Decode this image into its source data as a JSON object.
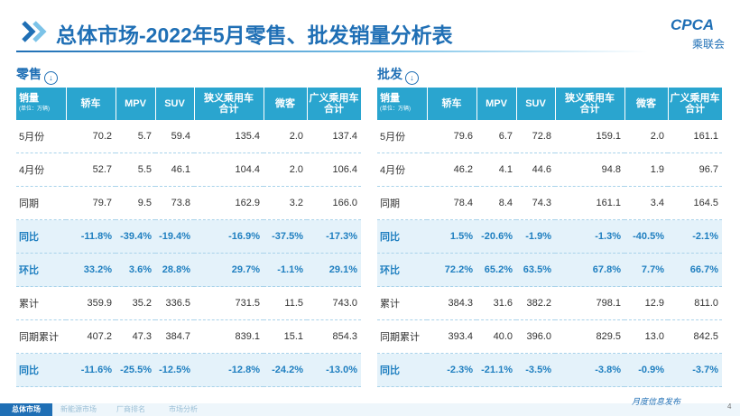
{
  "header": {
    "title": "总体市场-2022年5月零售、批发销量分析表",
    "logo": "CPCA",
    "logo_sub": "乘联会"
  },
  "tables": [
    {
      "label": "零售",
      "columns": [
        [
          "销量",
          "(单位：万辆)"
        ],
        [
          "轿车"
        ],
        [
          "MPV"
        ],
        [
          "SUV"
        ],
        [
          "狭义乘用车",
          "合计"
        ],
        [
          "微客"
        ],
        [
          "广义乘用车",
          "合计"
        ]
      ],
      "rows": [
        [
          "5月份",
          "70.2",
          "5.7",
          "59.4",
          "135.4",
          "2.0",
          "137.4"
        ],
        [
          "4月份",
          "52.7",
          "5.5",
          "46.1",
          "104.4",
          "2.0",
          "106.4"
        ],
        [
          "同期",
          "79.7",
          "9.5",
          "73.8",
          "162.9",
          "3.2",
          "166.0"
        ],
        [
          "同比",
          "-11.8%",
          "-39.4%",
          "-19.4%",
          "-16.9%",
          "-37.5%",
          "-17.3%"
        ],
        [
          "环比",
          "33.2%",
          "3.6%",
          "28.8%",
          "29.7%",
          "-1.1%",
          "29.1%"
        ],
        [
          "累计",
          "359.9",
          "35.2",
          "336.5",
          "731.5",
          "11.5",
          "743.0"
        ],
        [
          "同期累计",
          "407.2",
          "47.3",
          "384.7",
          "839.1",
          "15.1",
          "854.3"
        ],
        [
          "同比",
          "-11.6%",
          "-25.5%",
          "-12.5%",
          "-12.8%",
          "-24.2%",
          "-13.0%"
        ]
      ]
    },
    {
      "label": "批发",
      "columns": [
        [
          "销量",
          "(单位：万辆)"
        ],
        [
          "轿车"
        ],
        [
          "MPV"
        ],
        [
          "SUV"
        ],
        [
          "狭义乘用车",
          "合计"
        ],
        [
          "微客"
        ],
        [
          "广义乘用车",
          "合计"
        ]
      ],
      "rows": [
        [
          "5月份",
          "79.6",
          "6.7",
          "72.8",
          "159.1",
          "2.0",
          "161.1"
        ],
        [
          "4月份",
          "46.2",
          "4.1",
          "44.6",
          "94.8",
          "1.9",
          "96.7"
        ],
        [
          "同期",
          "78.4",
          "8.4",
          "74.3",
          "161.1",
          "3.4",
          "164.5"
        ],
        [
          "同比",
          "1.5%",
          "-20.6%",
          "-1.9%",
          "-1.3%",
          "-40.5%",
          "-2.1%"
        ],
        [
          "环比",
          "72.2%",
          "65.2%",
          "63.5%",
          "67.8%",
          "7.7%",
          "66.7%"
        ],
        [
          "累计",
          "384.3",
          "31.6",
          "382.2",
          "798.1",
          "12.9",
          "811.0"
        ],
        [
          "同期累计",
          "393.4",
          "40.0",
          "396.0",
          "829.5",
          "13.0",
          "842.5"
        ],
        [
          "同比",
          "-2.3%",
          "-21.1%",
          "-3.5%",
          "-3.8%",
          "-0.9%",
          "-3.7%"
        ]
      ]
    }
  ],
  "footer": {
    "tabs": [
      "总体市场",
      "新能源市场",
      "厂商排名",
      "市场分析"
    ],
    "note": "月度信息发布",
    "page": "4"
  }
}
